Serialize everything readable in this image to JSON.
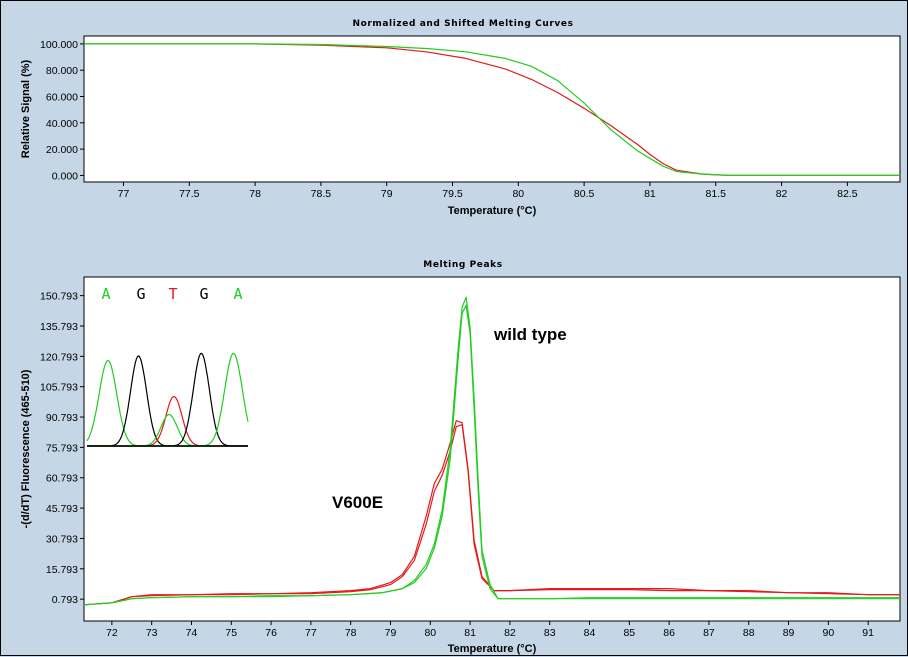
{
  "colors": {
    "panel_bg": "#c5d6e6",
    "plot_bg": "#ffffff",
    "mutant": "#e41a1a",
    "wildtype": "#22cc22",
    "trace_black": "#000000"
  },
  "chart_data": [
    {
      "type": "line",
      "title": "Normalized and Shifted Melting Curves",
      "xlabel": "Temperature (°C)",
      "ylabel": "Relative Signal (%)",
      "xlim": [
        76.7,
        82.9
      ],
      "ylim": [
        -5,
        106
      ],
      "xticks": [
        77,
        77.5,
        78,
        78.5,
        79,
        79.5,
        80,
        80.5,
        81,
        81.5,
        82,
        82.5
      ],
      "xtick_labels": [
        "77",
        "77.5",
        "78",
        "78.5",
        "79",
        "79.5",
        "80",
        "80.5",
        "81",
        "81.5",
        "82",
        "82.5"
      ],
      "yticks": [
        0,
        20,
        40,
        60,
        80,
        100
      ],
      "ytick_labels": [
        "0.000",
        "20.000",
        "40.000",
        "60.000",
        "80.000",
        "100.000"
      ],
      "series": [
        {
          "color": "#e41a1a",
          "x": [
            76.7,
            77.5,
            78,
            78.5,
            79,
            79.3,
            79.6,
            79.9,
            80.1,
            80.3,
            80.5,
            80.7,
            80.9,
            81,
            81.1,
            81.2,
            81.4,
            81.6,
            82,
            82.9
          ],
          "y": [
            100,
            100,
            100,
            99,
            97,
            94,
            89,
            81,
            73,
            63,
            51,
            38,
            24,
            16,
            9,
            4,
            1,
            0,
            0,
            0
          ]
        },
        {
          "color": "#22cc22",
          "x": [
            76.7,
            77.5,
            78,
            78.5,
            79,
            79.3,
            79.6,
            79.9,
            80.1,
            80.3,
            80.5,
            80.7,
            80.9,
            81,
            81.1,
            81.2,
            81.4,
            81.6,
            82,
            82.9
          ],
          "y": [
            100,
            100,
            100,
            99.5,
            98,
            96.5,
            94,
            89,
            83,
            72,
            55,
            35,
            19,
            13,
            7,
            3,
            1,
            0,
            0,
            0
          ]
        }
      ]
    },
    {
      "type": "line",
      "title": "Melting Peaks",
      "xlabel": "Temperature (°C)",
      "ylabel": "-(d/dT) Fluorescence (465-510)",
      "xlim": [
        71.3,
        91.8
      ],
      "ylim": [
        -10,
        160
      ],
      "xticks": [
        72,
        73,
        74,
        75,
        76,
        77,
        78,
        79,
        80,
        81,
        82,
        83,
        84,
        85,
        86,
        87,
        88,
        89,
        90,
        91
      ],
      "xtick_labels": [
        "72",
        "73",
        "74",
        "75",
        "76",
        "77",
        "78",
        "79",
        "80",
        "81",
        "82",
        "83",
        "84",
        "85",
        "86",
        "87",
        "88",
        "89",
        "90",
        "91"
      ],
      "yticks": [
        0.793,
        15.793,
        30.793,
        45.793,
        60.793,
        75.793,
        90.793,
        105.793,
        120.793,
        135.793,
        150.793
      ],
      "ytick_labels": [
        "0.793",
        "15.793",
        "30.793",
        "45.793",
        "60.793",
        "75.793",
        "90.793",
        "105.793",
        "120.793",
        "135.793",
        "150.793"
      ],
      "annotations": [
        "wild type",
        "V600E"
      ],
      "series": [
        {
          "color": "#e41a1a",
          "x": [
            71.3,
            72,
            72.5,
            73,
            74,
            75,
            76,
            77,
            78,
            78.5,
            79,
            79.3,
            79.6,
            79.9,
            80.1,
            80.3,
            80.5,
            80.65,
            80.8,
            80.95,
            81.1,
            81.3,
            81.6,
            82,
            83,
            84,
            85,
            86,
            87,
            88,
            89,
            90,
            91,
            91.8
          ],
          "y": [
            -2,
            -1,
            2,
            3,
            3,
            3.5,
            3.5,
            4,
            5,
            6,
            9,
            13,
            22,
            42,
            58,
            65,
            78,
            89,
            88,
            65,
            30,
            12,
            5,
            5,
            6,
            6,
            6,
            6,
            5,
            5,
            4,
            4,
            3,
            3
          ]
        },
        {
          "color": "#e41a1a",
          "x": [
            71.3,
            72,
            72.5,
            73,
            74,
            75,
            76,
            77,
            78,
            78.5,
            79,
            79.3,
            79.6,
            79.9,
            80.1,
            80.3,
            80.5,
            80.65,
            80.8,
            80.95,
            81.1,
            81.3,
            81.6,
            82,
            83,
            84,
            85,
            86,
            87,
            88,
            89,
            90,
            91,
            91.8
          ],
          "y": [
            -2,
            -1,
            2,
            2.5,
            3,
            3,
            3.5,
            3.5,
            4.5,
            5.5,
            8,
            12,
            20,
            38,
            54,
            62,
            74,
            86,
            87,
            64,
            28,
            11,
            5,
            5,
            5.5,
            5.5,
            5.5,
            5,
            5,
            4.5,
            4,
            3.5,
            3,
            3
          ]
        },
        {
          "color": "#22cc22",
          "x": [
            71.3,
            72,
            72.5,
            73,
            74,
            75,
            76,
            77,
            78,
            78.8,
            79.3,
            79.6,
            79.9,
            80.1,
            80.3,
            80.5,
            80.6,
            80.7,
            80.8,
            80.9,
            81,
            81.1,
            81.2,
            81.3,
            81.5,
            81.7,
            82,
            83,
            84,
            85,
            86,
            87,
            88,
            89,
            90,
            91,
            91.8
          ],
          "y": [
            -2,
            -1,
            1,
            1.5,
            2,
            2,
            2.5,
            2.5,
            3,
            4,
            6,
            10,
            18,
            28,
            45,
            75,
            100,
            125,
            145,
            150,
            135,
            100,
            60,
            25,
            8,
            1,
            1,
            1,
            1.5,
            1.5,
            1.5,
            1.5,
            1.5,
            1.5,
            1.5,
            1.5,
            1.5
          ]
        },
        {
          "color": "#22cc22",
          "x": [
            71.3,
            72,
            72.5,
            73,
            74,
            75,
            76,
            77,
            78,
            78.8,
            79.3,
            79.6,
            79.9,
            80.1,
            80.3,
            80.5,
            80.6,
            80.7,
            80.8,
            80.9,
            81,
            81.1,
            81.2,
            81.3,
            81.5,
            81.7,
            82,
            83,
            84,
            85,
            86,
            87,
            88,
            89,
            90,
            91,
            91.8
          ],
          "y": [
            -2,
            -1,
            1,
            1.5,
            2,
            2,
            2,
            2.5,
            3,
            4,
            6,
            9,
            16,
            26,
            42,
            70,
            95,
            120,
            142,
            146,
            132,
            95,
            55,
            22,
            6,
            1,
            1,
            1,
            1,
            1,
            1,
            1,
            1,
            1,
            1,
            1,
            1
          ]
        }
      ]
    }
  ],
  "inset": {
    "bases": [
      {
        "letter": "A",
        "color": "#22cc22"
      },
      {
        "letter": "G",
        "color": "#000000"
      },
      {
        "letter": "T",
        "color": "#e41a1a"
      },
      {
        "letter": "G",
        "color": "#000000"
      },
      {
        "letter": "A",
        "color": "#22cc22"
      }
    ],
    "peaks": [
      {
        "color": "#22cc22",
        "center": 0.13,
        "height": 0.95,
        "width": 0.055
      },
      {
        "color": "#000000",
        "center": 0.32,
        "height": 1.0,
        "width": 0.05
      },
      {
        "color": "#e41a1a",
        "center": 0.54,
        "height": 0.55,
        "width": 0.05
      },
      {
        "color": "#22cc22",
        "center": 0.51,
        "height": 0.35,
        "width": 0.05
      },
      {
        "color": "#000000",
        "center": 0.71,
        "height": 1.03,
        "width": 0.05
      },
      {
        "color": "#22cc22",
        "center": 0.91,
        "height": 1.03,
        "width": 0.055
      }
    ]
  }
}
